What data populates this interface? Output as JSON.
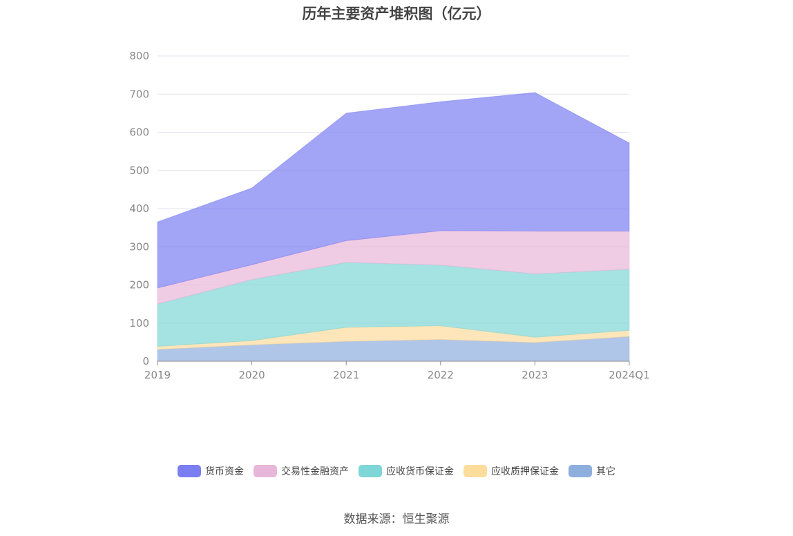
{
  "chart_data": {
    "type": "area",
    "stacked": true,
    "title": "历年主要资产堆积图（亿元）",
    "categories": [
      "2019",
      "2020",
      "2021",
      "2022",
      "2023",
      "2024Q1"
    ],
    "ylim": [
      0,
      800
    ],
    "yticks": [
      "0",
      "100",
      "200",
      "300",
      "400",
      "500",
      "600",
      "700",
      "800"
    ],
    "grid": true,
    "legend_position": "bottom",
    "series": [
      {
        "name": "其它",
        "color": "#8eaede",
        "values": [
          31,
          43,
          52,
          57,
          49,
          65
        ]
      },
      {
        "name": "应收质押保证金",
        "color": "#fddc9c",
        "values": [
          8,
          11,
          37,
          36,
          14,
          16
        ]
      },
      {
        "name": "应收货币保证金",
        "color": "#7fd6d6",
        "values": [
          111,
          160,
          170,
          159,
          166,
          160
        ]
      },
      {
        "name": "交易性金融资产",
        "color": "#e8b6d8",
        "values": [
          42,
          39,
          57,
          90,
          112,
          100
        ]
      },
      {
        "name": "货币资金",
        "color": "#7a7ef2",
        "values": [
          173,
          201,
          334,
          338,
          363,
          231
        ]
      }
    ]
  },
  "legend_order": [
    4,
    3,
    2,
    1,
    0
  ],
  "source": "数据来源：恒生聚源"
}
